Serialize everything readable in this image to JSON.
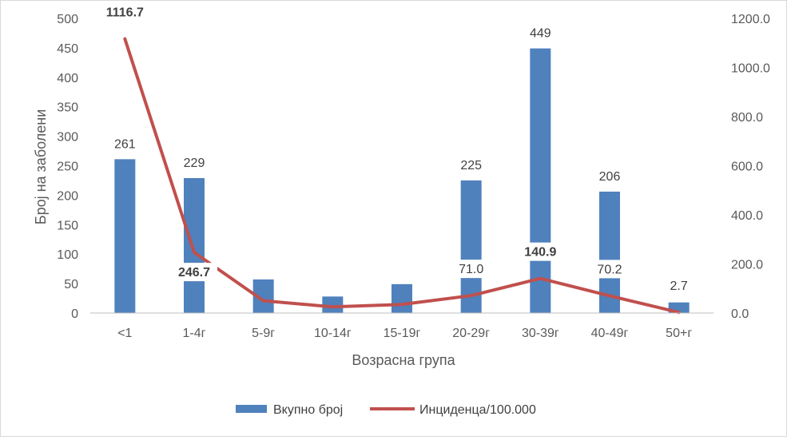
{
  "chart_data": {
    "type": "bar",
    "categories": [
      "<1",
      "1-4г",
      "5-9г",
      "10-14г",
      "15-19г",
      "20-29г",
      "30-39г",
      "40-49г",
      "50+г"
    ],
    "series": [
      {
        "name": "Вкупно број",
        "type": "bar",
        "axis": "left",
        "values": [
          261,
          229,
          57,
          28,
          49,
          225,
          449,
          206,
          18
        ],
        "data_labels": [
          "261",
          "229",
          "",
          "",
          "",
          "225",
          "449",
          "206",
          ""
        ],
        "color": "#4f81bd"
      },
      {
        "name": "Инциденца/100.000",
        "type": "line",
        "axis": "right",
        "values": [
          1116.7,
          246.7,
          50,
          25,
          35,
          71.0,
          140.9,
          70.2,
          2.7
        ],
        "data_labels": [
          "1116.7",
          "246.7",
          "",
          "",
          "",
          "71.0",
          "140.9",
          "70.2",
          "2.7"
        ],
        "bold_labels": [
          true,
          true,
          false,
          false,
          false,
          false,
          true,
          false,
          false
        ],
        "color": "#c0504d"
      }
    ],
    "xlabel": "Возрасна група",
    "ylabel": "Број на заболени",
    "ylim": [
      0,
      500
    ],
    "y_ticks": [
      "0",
      "50",
      "100",
      "150",
      "200",
      "250",
      "300",
      "350",
      "400",
      "450",
      "500"
    ],
    "y2lim": [
      0,
      1200
    ],
    "y2_ticks": [
      "0.0",
      "200.0",
      "400.0",
      "600.0",
      "800.0",
      "1000.0",
      "1200.0"
    ],
    "grid": false,
    "legend_position": "bottom"
  }
}
